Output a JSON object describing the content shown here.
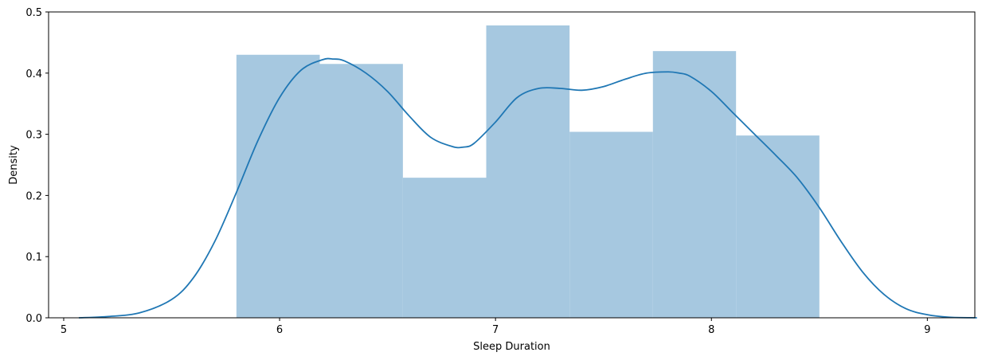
{
  "chart_data": {
    "type": "bar",
    "xlabel": "Sleep Duration",
    "ylabel": "Density",
    "xlim": [
      4.93,
      9.22
    ],
    "ylim": [
      0,
      0.5
    ],
    "xticks": [
      5,
      6,
      7,
      8,
      9
    ],
    "xtick_labels": [
      "5",
      "6",
      "7",
      "8",
      "9"
    ],
    "yticks": [
      0,
      0.1,
      0.2,
      0.3,
      0.4,
      0.5
    ],
    "ytick_labels": [
      "0.0",
      "0.1",
      "0.2",
      "0.3",
      "0.4",
      "0.5"
    ],
    "grid": false,
    "histogram": {
      "bin_edges": [
        5.8,
        6.186,
        6.571,
        6.957,
        7.343,
        7.729,
        8.114,
        8.5
      ],
      "values": [
        0.43,
        0.415,
        0.229,
        0.478,
        0.304,
        0.436,
        0.298
      ],
      "color": "#a6c8e0"
    },
    "kde": {
      "x": [
        5.07,
        5.2,
        5.35,
        5.5,
        5.6,
        5.7,
        5.8,
        5.9,
        6.0,
        6.1,
        6.2,
        6.25,
        6.3,
        6.4,
        6.5,
        6.6,
        6.7,
        6.8,
        6.85,
        6.9,
        7.0,
        7.1,
        7.2,
        7.3,
        7.4,
        7.5,
        7.6,
        7.7,
        7.8,
        7.85,
        7.9,
        8.0,
        8.1,
        8.2,
        8.3,
        8.4,
        8.5,
        8.6,
        8.7,
        8.8,
        8.9,
        9.0,
        9.1,
        9.23
      ],
      "y": [
        0.0,
        0.002,
        0.008,
        0.03,
        0.065,
        0.125,
        0.205,
        0.29,
        0.36,
        0.405,
        0.422,
        0.423,
        0.42,
        0.4,
        0.37,
        0.33,
        0.295,
        0.28,
        0.279,
        0.285,
        0.32,
        0.36,
        0.375,
        0.375,
        0.372,
        0.378,
        0.39,
        0.4,
        0.402,
        0.4,
        0.395,
        0.37,
        0.335,
        0.3,
        0.265,
        0.228,
        0.18,
        0.125,
        0.075,
        0.038,
        0.015,
        0.005,
        0.001,
        0.0
      ],
      "color": "#1f77b4"
    }
  }
}
